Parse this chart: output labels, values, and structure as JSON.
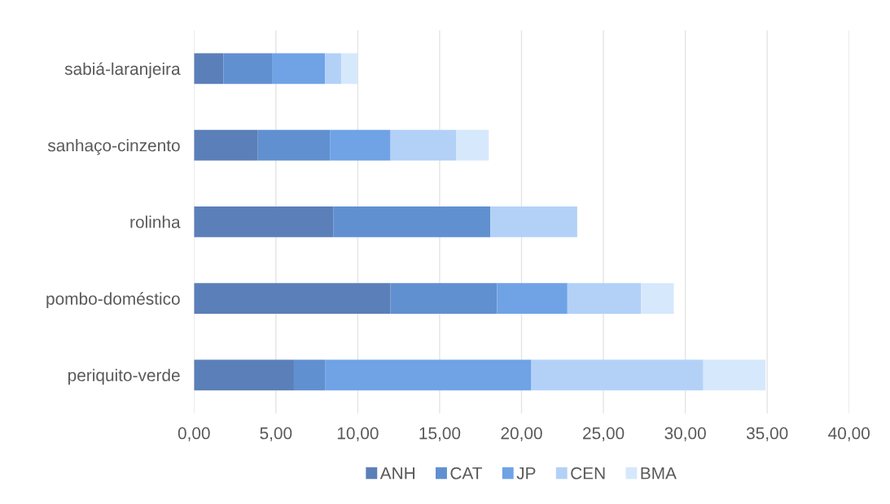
{
  "chart_data": {
    "type": "bar",
    "orientation": "horizontal",
    "stacked": true,
    "categories": [
      "sabiá-laranjeira",
      "sanhaço-cinzento",
      "rolinha",
      "pombo-doméstico",
      "periquito-verde"
    ],
    "series": [
      {
        "name": "ANH",
        "color": "#5b7fb8",
        "values": [
          1.8,
          3.9,
          8.5,
          12.0,
          6.1
        ]
      },
      {
        "name": "CAT",
        "color": "#6190d0",
        "values": [
          3.0,
          4.4,
          9.6,
          6.5,
          1.9
        ]
      },
      {
        "name": "JP",
        "color": "#6fa3e6",
        "values": [
          3.2,
          3.7,
          0,
          4.3,
          12.6
        ]
      },
      {
        "name": "CEN",
        "color": "#b3d1f7",
        "values": [
          1.0,
          4.0,
          5.3,
          4.5,
          10.5
        ]
      },
      {
        "name": "BMA",
        "color": "#d6e8fb",
        "values": [
          1.0,
          2.0,
          0,
          2.0,
          3.8
        ]
      }
    ],
    "xlim": [
      0,
      40
    ],
    "xticks": [
      {
        "value": 0,
        "label": "0,00"
      },
      {
        "value": 5,
        "label": "5,00"
      },
      {
        "value": 10,
        "label": "10,00"
      },
      {
        "value": 15,
        "label": "15,00"
      },
      {
        "value": 20,
        "label": "20,00"
      },
      {
        "value": 25,
        "label": "25,00"
      },
      {
        "value": 30,
        "label": "30,00"
      },
      {
        "value": 35,
        "label": "35,00"
      },
      {
        "value": 40,
        "label": "40,00"
      }
    ],
    "grid": "x",
    "legend": "bottom"
  }
}
